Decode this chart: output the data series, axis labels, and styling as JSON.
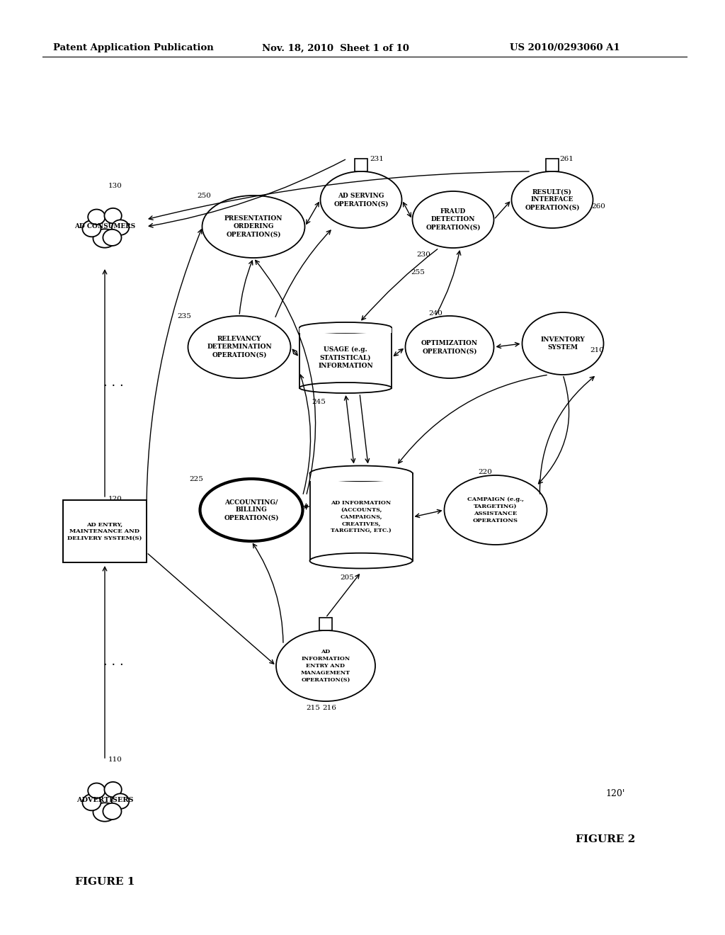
{
  "bg_color": "#ffffff",
  "header_left": "Patent Application Publication",
  "header_mid": "Nov. 18, 2010  Sheet 1 of 10",
  "header_right": "US 2010/0293060 A1",
  "fig1_label": "FIGURE 1",
  "fig2_label": "FIGURE 2",
  "fig2_prime": "120'"
}
